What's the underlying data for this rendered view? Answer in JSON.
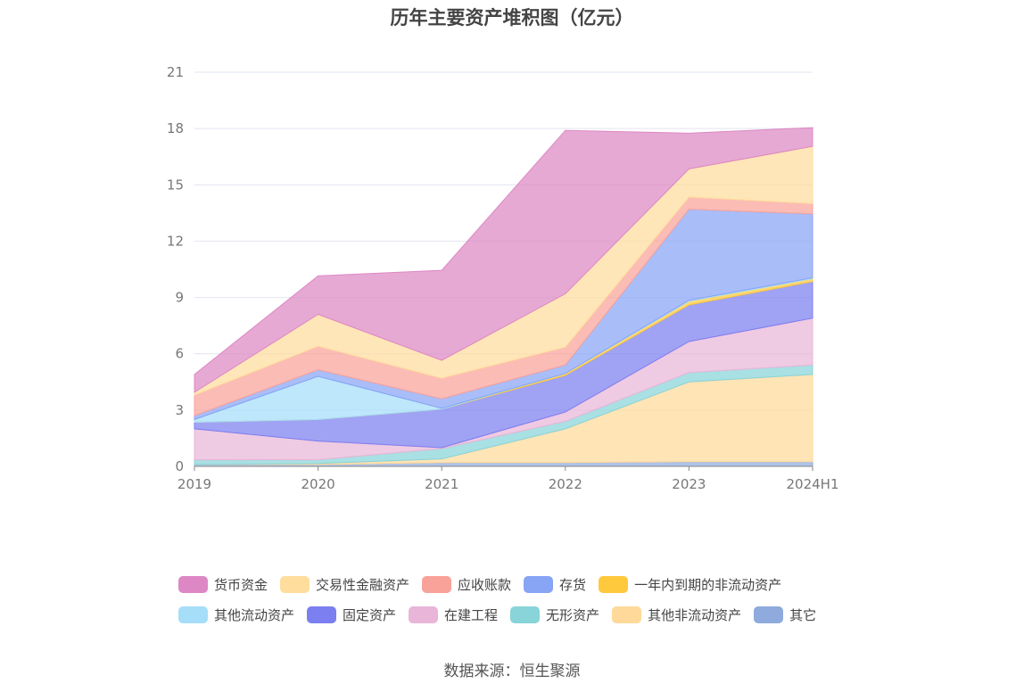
{
  "chart_data": {
    "type": "area",
    "stacked": true,
    "title": "历年主要资产堆积图（亿元）",
    "xlabel": "",
    "ylabel": "",
    "categories": [
      "2019",
      "2020",
      "2021",
      "2022",
      "2023",
      "2024H1"
    ],
    "y_ticks": [
      "0",
      "3",
      "6",
      "9",
      "12",
      "15",
      "18",
      "21"
    ],
    "ylim": [
      0,
      21
    ],
    "grid": true,
    "legend_position": "bottom",
    "series": [
      {
        "name": "其它",
        "color": "#8faadc",
        "values": [
          0.1,
          0.1,
          0.2,
          0.2,
          0.25,
          0.25
        ]
      },
      {
        "name": "其他非流动资产",
        "color": "#ffd99a",
        "values": [
          0.0,
          0.05,
          0.2,
          1.8,
          4.25,
          4.65
        ]
      },
      {
        "name": "无形资产",
        "color": "#88d4d8",
        "values": [
          0.25,
          0.2,
          0.55,
          0.4,
          0.5,
          0.5
        ]
      },
      {
        "name": "在建工程",
        "color": "#e9b5d8",
        "values": [
          1.65,
          1.0,
          0.05,
          0.5,
          1.65,
          2.5
        ]
      },
      {
        "name": "固定资产",
        "color": "#7b7ff0",
        "values": [
          0.35,
          1.15,
          2.05,
          1.95,
          1.95,
          1.95
        ]
      },
      {
        "name": "一年内到期的非流动资产",
        "color": "#ffc93e",
        "values": [
          0.0,
          0.0,
          0.0,
          0.1,
          0.2,
          0.15
        ]
      },
      {
        "name": "其他流动资产",
        "color": "#a6def9",
        "values": [
          0.15,
          2.3,
          0.05,
          0.0,
          0.05,
          0.05
        ]
      },
      {
        "name": "存货",
        "color": "#88a4f5",
        "values": [
          0.2,
          0.35,
          0.5,
          0.45,
          4.85,
          3.4
        ]
      },
      {
        "name": "应收账款",
        "color": "#f9a29a",
        "values": [
          1.1,
          1.25,
          1.1,
          0.95,
          0.65,
          0.55
        ]
      },
      {
        "name": "交易性金融资产",
        "color": "#ffdd9d",
        "values": [
          0.15,
          1.7,
          0.95,
          2.85,
          1.5,
          3.05
        ]
      },
      {
        "name": "货币资金",
        "color": "#dd88c4",
        "values": [
          0.95,
          2.05,
          4.8,
          8.7,
          1.9,
          1.0
        ]
      }
    ]
  },
  "legend": {
    "rows": [
      [
        {
          "name": "货币资金",
          "color": "#dd88c4"
        },
        {
          "name": "交易性金融资产",
          "color": "#ffdd9d"
        },
        {
          "name": "应收账款",
          "color": "#f9a29a"
        },
        {
          "name": "存货",
          "color": "#88a4f5"
        },
        {
          "name": "一年内到期的非流动资产",
          "color": "#ffc93e"
        }
      ],
      [
        {
          "name": "其他流动资产",
          "color": "#a6def9"
        },
        {
          "name": "固定资产",
          "color": "#7b7ff0"
        },
        {
          "name": "在建工程",
          "color": "#e9b5d8"
        },
        {
          "name": "无形资产",
          "color": "#88d4d8"
        },
        {
          "name": "其他非流动资产",
          "color": "#ffd99a"
        },
        {
          "name": "其它",
          "color": "#8faadc"
        }
      ]
    ]
  },
  "source": "数据来源：恒生聚源"
}
